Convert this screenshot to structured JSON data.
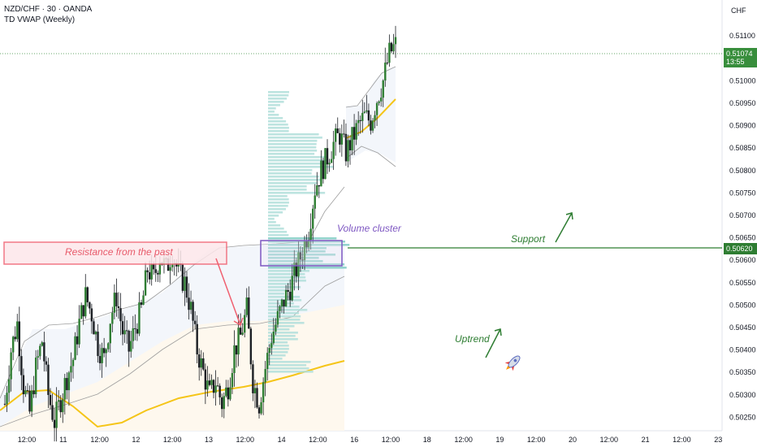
{
  "header": {
    "symbol_line": "NZD/CHF · 30 · OANDA",
    "indicator_line": "TD VWAP (Weekly)"
  },
  "price_axis": {
    "currency": "CHF",
    "ticks": [
      "0.51100",
      "0.51050",
      "0.51000",
      "0.50950",
      "0.50900",
      "0.50850",
      "0.50800",
      "0.50750",
      "0.50700",
      "0.50650",
      "0.50600",
      "0.50550",
      "0.50500",
      "0.50450",
      "0.50400",
      "0.50350",
      "0.50300",
      "0.50250"
    ],
    "current_price": "0.51074",
    "current_countdown": "13:55",
    "support_price": "0.50620"
  },
  "time_axis": {
    "ticks": [
      "12:00",
      "11",
      "12:00",
      "12",
      "12:00",
      "13",
      "12:00",
      "14",
      "12:00",
      "16",
      "12:00",
      "18",
      "12:00",
      "19",
      "12:00",
      "20",
      "12:00",
      "21",
      "12:00",
      "23"
    ]
  },
  "annotations": {
    "resistance": "Resistance from the past",
    "volume_cluster": "Volume cluster",
    "support": "Support",
    "uptrend": "Uptrend"
  },
  "colors": {
    "up": "#26a69a",
    "down": "#131722",
    "candle_body": "#1e3a2c",
    "vwap": "#f5c518",
    "support_line": "#2e7d32",
    "resistance": "#f06070",
    "volume_box": "#7e57c2",
    "current_price_tag": "#388e3c"
  },
  "chart_data": {
    "type": "candlestick",
    "symbol": "NZD/CHF",
    "timeframe": "30",
    "ylim": [
      0.5022,
      0.5118
    ],
    "levels": {
      "support": 0.5062,
      "current": 0.51074
    },
    "price_path": [
      0.5028,
      0.504,
      0.5046,
      0.5032,
      0.5026,
      0.5036,
      0.5042,
      0.503,
      0.5024,
      0.5029,
      0.5034,
      0.5038,
      0.5046,
      0.5052,
      0.5048,
      0.5041,
      0.5038,
      0.5047,
      0.5052,
      0.5044,
      0.504,
      0.5045,
      0.5049,
      0.5058,
      0.5056,
      0.5061,
      0.5058,
      0.5062,
      0.5057,
      0.5055,
      0.5049,
      0.504,
      0.5035,
      0.503,
      0.5033,
      0.5028,
      0.5032,
      0.504,
      0.5043,
      0.5049,
      0.5033,
      0.5028,
      0.5036,
      0.5043,
      0.5047,
      0.5051,
      0.5054,
      0.5058,
      0.5062,
      0.5067,
      0.5076,
      0.508,
      0.5083,
      0.5086,
      0.5088,
      0.5084,
      0.5087,
      0.509,
      0.5092,
      0.5091,
      0.5096,
      0.51,
      0.5106,
      0.5108
    ]
  }
}
